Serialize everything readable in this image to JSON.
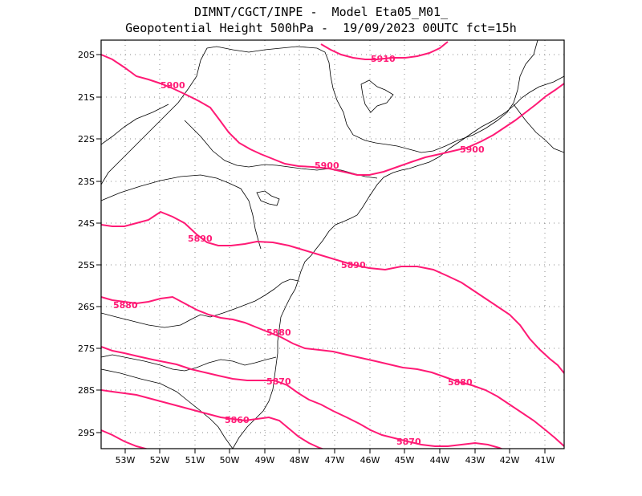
{
  "header": {
    "line1": "DIMNT/CGCT/INPE -  Model Eta05_M01_",
    "line2": "Geopotential Height 500hPa -  19/09/2023 00UTC fct=15h"
  },
  "axes": {
    "lat_labels": [
      "20S",
      "21S",
      "22S",
      "23S",
      "24S",
      "25S",
      "26S",
      "27S",
      "28S",
      "29S"
    ],
    "lon_labels": [
      "53W",
      "52W",
      "51W",
      "50W",
      "49W",
      "48W",
      "47W",
      "46W",
      "45W",
      "44W",
      "43W",
      "42W",
      "41W"
    ]
  },
  "contour_labels": {
    "c5910": "5910",
    "c5900a": "5900",
    "c5900b": "5900",
    "c5900c": "5900",
    "c5890a": "5890",
    "c5890b": "5890",
    "c5880a": "5880",
    "c5880b": "5880",
    "c5880c": "5880",
    "c5870a": "5870",
    "c5870b": "5870",
    "c5860": "5860"
  },
  "colors": {
    "contour": "#ff1a75",
    "coast": "#000000"
  }
}
